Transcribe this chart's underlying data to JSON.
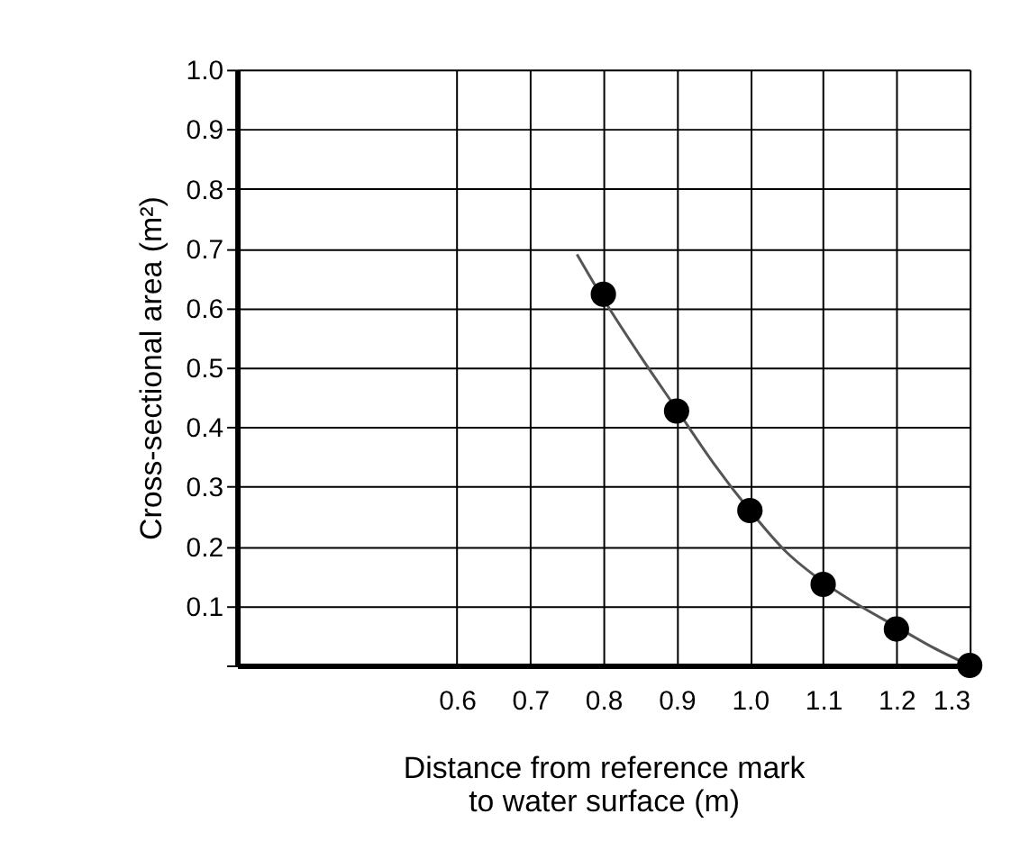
{
  "chart_data": {
    "type": "scatter",
    "xlabel": "Distance from reference mark\nto water surface (m)",
    "ylabel": "Cross-sectional area (m²)",
    "xlim": [
      0.3,
      1.3
    ],
    "ylim": [
      0,
      1.0
    ],
    "xticks": [
      0.6,
      0.7,
      0.8,
      0.9,
      {
        "value": 1.0,
        "label": "1.0"
      },
      1.1,
      1.2,
      1.3
    ],
    "yticks": [
      {
        "value": 0,
        "label": null
      },
      0.1,
      0.2,
      0.3,
      0.4,
      0.5,
      0.6,
      0.7,
      0.8,
      0.9,
      {
        "value": 1.0,
        "label": "1.0"
      }
    ],
    "grid": true,
    "marker": "circle",
    "x": [
      0.8,
      0.9,
      1.0,
      1.1,
      1.2,
      1.3
    ],
    "series": [
      {
        "type": "scatter",
        "color": "#000000",
        "values": [
          0.623,
          0.427,
          0.26,
          0.136,
          0.061,
          0.0
        ]
      },
      {
        "type": "line",
        "color": "#555555",
        "marker": "none",
        "x": [
          0.764,
          0.8,
          0.85,
          0.9,
          0.95,
          1.0,
          1.05,
          1.1,
          1.15,
          1.2,
          1.25,
          1.3
        ],
        "values": [
          0.69,
          0.615,
          0.52,
          0.43,
          0.34,
          0.26,
          0.19,
          0.14,
          0.1,
          0.065,
          0.03,
          0.0
        ]
      }
    ]
  }
}
